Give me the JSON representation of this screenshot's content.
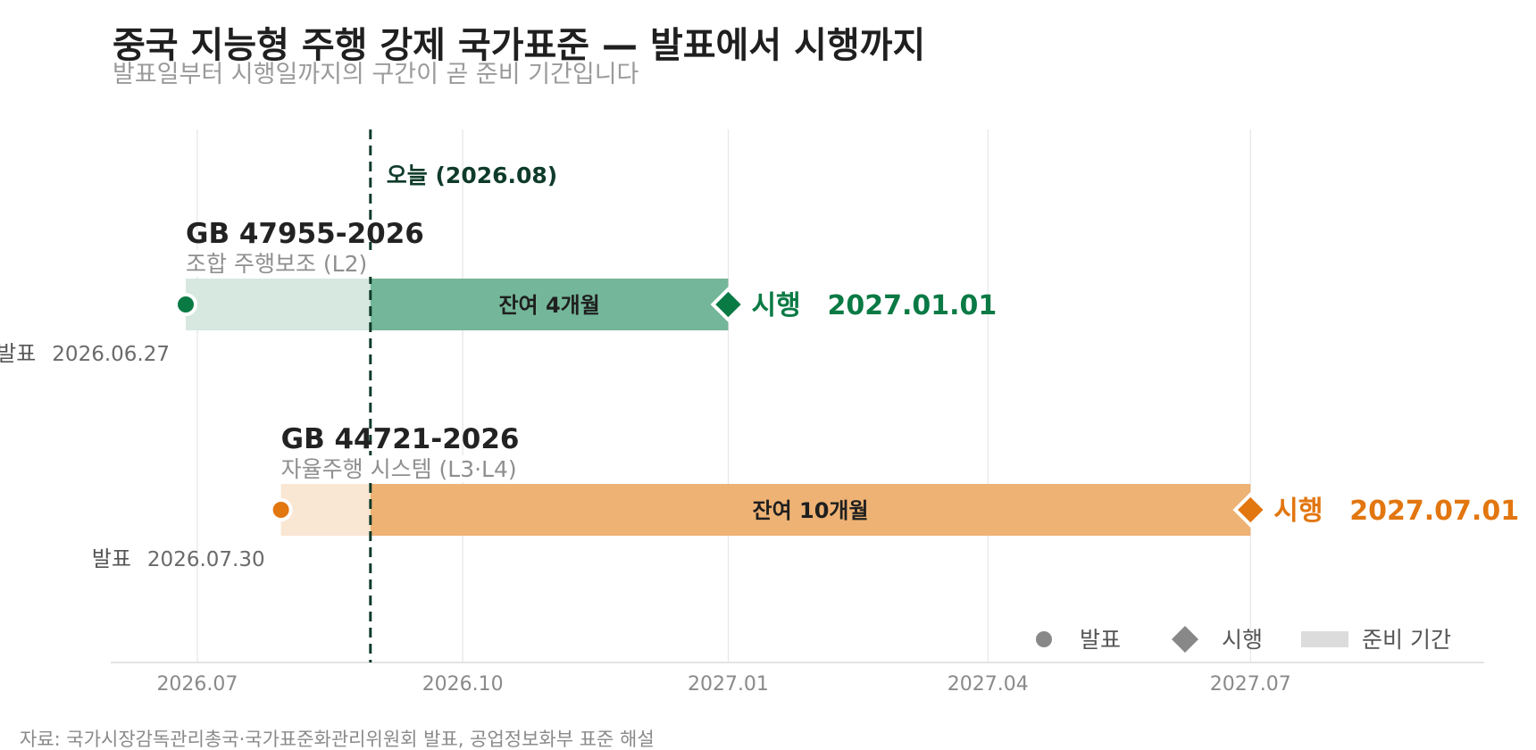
{
  "title": "중국 지능형 주행 강제 국가표준 — 발표에서 시행까지",
  "subtitle": "발표일부터 시행일까지의 구간이 곧 준비 기간입니다",
  "source": "자료: 국가시장감독관리총국·국가표준화관리위원회 발표, 공업정보화부 표준 해설",
  "chart_data": {
    "type": "gantt",
    "x_axis": {
      "type": "date",
      "range": [
        "2026-06-01",
        "2027-09-20"
      ],
      "ticks": [
        {
          "date": "2026-07-01",
          "label": "2026.07"
        },
        {
          "date": "2026-10-01",
          "label": "2026.10"
        },
        {
          "date": "2027-01-01",
          "label": "2027.01"
        },
        {
          "date": "2027-04-01",
          "label": "2027.04"
        },
        {
          "date": "2027-07-01",
          "label": "2027.07"
        }
      ],
      "grid": true
    },
    "today": {
      "date": "2026-08-30",
      "label": "오늘 (2026.08)",
      "color": "#0f3b2a"
    },
    "series": [
      {
        "code": "GB 47955-2026",
        "description": "조합 주행보조 (L2)",
        "publish_date": "2026-06-27",
        "publish_label": "발표",
        "publish_date_label": "2026.06.27",
        "effective_date": "2027-01-01",
        "effective_label": "시행",
        "effective_date_label": "2027.01.01",
        "remaining_label": "잔여 4개월",
        "color": "#0a7a45",
        "bar_color": "#74b699",
        "faded_color": "#d6e8df"
      },
      {
        "code": "GB 44721-2026",
        "description": "자율주행 시스템 (L3·L4)",
        "publish_date": "2026-07-30",
        "publish_label": "발표",
        "publish_date_label": "2026.07.30",
        "effective_date": "2027-07-01",
        "effective_label": "시행",
        "effective_date_label": "2027.07.01",
        "remaining_label": "잔여 10개월",
        "color": "#e2760f",
        "bar_color": "#eeb274",
        "faded_color": "#f9e6d3"
      }
    ],
    "legend": {
      "placement": "bottom-right",
      "items": [
        {
          "label": "발표",
          "shape": "circle",
          "color": "#888888"
        },
        {
          "label": "시행",
          "shape": "diamond",
          "color": "#888888"
        },
        {
          "label": "준비 기간",
          "shape": "rect",
          "color": "#dcdcdc"
        }
      ]
    }
  }
}
